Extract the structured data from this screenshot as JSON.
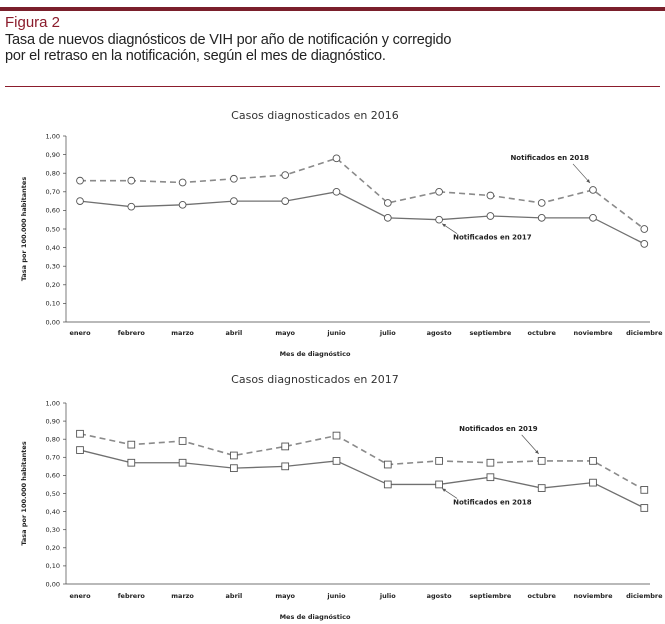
{
  "figure": {
    "label": "Figura 2",
    "caption_line1": "Tasa de nuevos diagnósticos de VIH por año de notificación y corregido",
    "caption_line2": "por el retraso en la notificación, según el mes de diagnóstico."
  },
  "colors": {
    "accent": "#8b1c2c",
    "series_dashed": "#8a8a8a",
    "series_solid": "#707070"
  },
  "chart_data": [
    {
      "type": "line",
      "title": "Casos diagnosticados en 2016",
      "xlabel": "Mes de diagnóstico",
      "ylabel": "Tasa por 100.000 habitantes",
      "ylim": [
        0,
        1
      ],
      "ytick_labels": [
        "0,00",
        "0,10",
        "0,20",
        "0,30",
        "0,40",
        "0,50",
        "0,60",
        "0,70",
        "0,80",
        "0,90",
        "1,00"
      ],
      "categories": [
        "enero",
        "febrero",
        "marzo",
        "abril",
        "mayo",
        "junio",
        "julio",
        "agosto",
        "septiembre",
        "octubre",
        "noviembre",
        "diciembre"
      ],
      "series": [
        {
          "name": "Notificados en 2018",
          "style": "dashed",
          "marker": "circle",
          "values": [
            0.76,
            0.76,
            0.75,
            0.77,
            0.79,
            0.88,
            0.64,
            0.7,
            0.68,
            0.64,
            0.71,
            0.5
          ]
        },
        {
          "name": "Notificados en 2017",
          "style": "solid",
          "marker": "circle",
          "values": [
            0.65,
            0.62,
            0.63,
            0.65,
            0.65,
            0.7,
            0.56,
            0.55,
            0.57,
            0.56,
            0.56,
            0.42
          ]
        }
      ],
      "annotations": [
        {
          "text": "Notificados en 2018",
          "series": 0,
          "point": 10
        },
        {
          "text": "Notificados en 2017",
          "series": 1,
          "point": 7
        }
      ],
      "grid": false
    },
    {
      "type": "line",
      "title": "Casos diagnosticados en 2017",
      "xlabel": "Mes de diagnóstico",
      "ylabel": "Tasa por 100.000 habitantes",
      "ylim": [
        0,
        1
      ],
      "ytick_labels": [
        "0,00",
        "0,10",
        "0,20",
        "0,30",
        "0,40",
        "0,50",
        "0,60",
        "0,70",
        "0,80",
        "0,90",
        "1,00"
      ],
      "categories": [
        "enero",
        "febrero",
        "marzo",
        "abril",
        "mayo",
        "junio",
        "julio",
        "agosto",
        "septiembre",
        "octubre",
        "noviembre",
        "diciembre"
      ],
      "series": [
        {
          "name": "Notificados en 2019",
          "style": "dashed",
          "marker": "square",
          "values": [
            0.83,
            0.77,
            0.79,
            0.71,
            0.76,
            0.82,
            0.66,
            0.68,
            0.67,
            0.68,
            0.68,
            0.52
          ]
        },
        {
          "name": "Notificados en 2018",
          "style": "solid",
          "marker": "square",
          "values": [
            0.74,
            0.67,
            0.67,
            0.64,
            0.65,
            0.68,
            0.55,
            0.55,
            0.59,
            0.53,
            0.56,
            0.42
          ]
        }
      ],
      "annotations": [
        {
          "text": "Notificados en 2019",
          "series": 0,
          "point": 9
        },
        {
          "text": "Notificados en 2018",
          "series": 1,
          "point": 7
        }
      ],
      "grid": false
    }
  ]
}
